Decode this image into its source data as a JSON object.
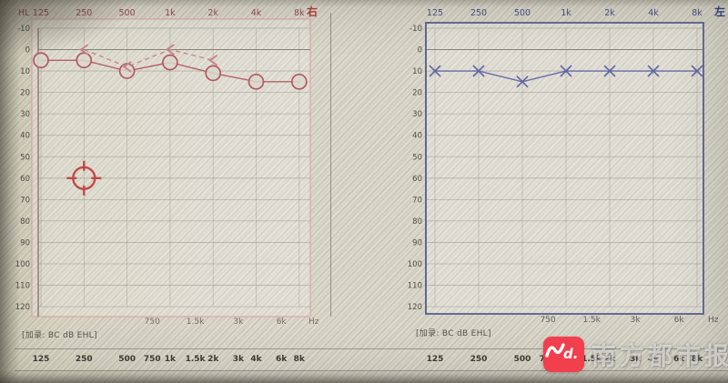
{
  "captions": {
    "left": "[加录: BC dB EHL]",
    "right": "[加录: BC dB EHL]"
  },
  "watermark": {
    "brand": "南方都市报",
    "logo_tail": "d.",
    "logo_color": "#f23f4d"
  },
  "bottom_scale": {
    "labels": [
      "125",
      "250",
      "500",
      "750",
      "1k",
      "1.5k",
      "2k",
      "3k",
      "4k",
      "6k",
      "8k"
    ],
    "freqs": [
      125,
      250,
      500,
      750,
      1000,
      1500,
      2000,
      3000,
      4000,
      6000,
      8000
    ]
  },
  "chart_data": [
    {
      "id": "right-ear",
      "type": "line",
      "title": "Right ear audiogram (air conduction, red circles)",
      "ear_label": "右",
      "corner_label": "HL",
      "x_unit": "Hz",
      "x_top_labels": [
        "125",
        "250",
        "500",
        "1k",
        "2k",
        "4k",
        "8k"
      ],
      "x_freqs": [
        125,
        250,
        500,
        1000,
        2000,
        4000,
        8000
      ],
      "x_bottom_labels": [
        "750",
        "1.5k",
        "3k",
        "6k"
      ],
      "x_bottom_freqs": [
        750,
        1500,
        3000,
        6000
      ],
      "y_ticks": [
        -10,
        0,
        10,
        20,
        30,
        40,
        50,
        60,
        70,
        80,
        90,
        100,
        110,
        120
      ],
      "ylim": [
        -10,
        120
      ],
      "grid": true,
      "colors": {
        "accent": "#b15a60",
        "secondary": "#c48488",
        "frame": "#dda6a8",
        "top_labels": "#94494e",
        "ear": "#b03c3c",
        "cursor": "#c14848"
      },
      "series": [
        {
          "name": "air-conduction-right",
          "marker": "circle",
          "style": "solid",
          "x": [
            125,
            250,
            500,
            1000,
            2000,
            4000,
            8000
          ],
          "values": [
            5,
            5,
            10,
            6,
            11,
            15,
            15
          ]
        },
        {
          "name": "bone-conduction-right",
          "marker": "less-than",
          "style": "dashed",
          "x": [
            250,
            500,
            1000,
            2000
          ],
          "values": [
            0,
            8,
            0,
            5
          ]
        }
      ],
      "cursor": {
        "freq": 250,
        "level": 60
      }
    },
    {
      "id": "left-ear",
      "type": "line",
      "title": "Left ear audiogram (air conduction, blue crosses)",
      "ear_label": "左",
      "corner_label": "",
      "x_unit": "Hz",
      "x_top_labels": [
        "125",
        "250",
        "500",
        "1k",
        "2k",
        "4k",
        "8k"
      ],
      "x_freqs": [
        125,
        250,
        500,
        1000,
        2000,
        4000,
        8000
      ],
      "x_bottom_labels": [
        "750",
        "1.5k",
        "3k",
        "6k"
      ],
      "x_bottom_freqs": [
        750,
        1500,
        3000,
        6000
      ],
      "y_ticks": [
        -10,
        0,
        10,
        20,
        30,
        40,
        50,
        60,
        70,
        80,
        90,
        100,
        110,
        120
      ],
      "ylim": [
        -10,
        120
      ],
      "grid": true,
      "colors": {
        "accent": "#5f66a3",
        "secondary": "#7a80b5",
        "frame": "#59608c",
        "top_labels": "#434e82",
        "ear": "#2f3c86",
        "cursor": ""
      },
      "series": [
        {
          "name": "air-conduction-left",
          "marker": "x",
          "style": "solid",
          "x": [
            125,
            250,
            500,
            1000,
            2000,
            4000,
            8000
          ],
          "values": [
            10,
            10,
            15,
            10,
            10,
            10,
            10
          ]
        }
      ],
      "cursor": null
    }
  ]
}
